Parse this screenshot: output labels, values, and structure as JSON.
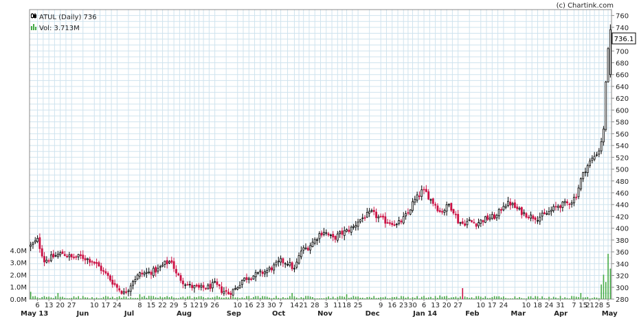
{
  "credit": "(c) Chartink.com",
  "legend": {
    "price_label": "ATUL (Daily) 736",
    "volume_label": "Vol: 3.713M"
  },
  "last_price_label": "736.1",
  "colors": {
    "up": "#000000",
    "down": "#cc1144",
    "volume": "#44aa44",
    "grid": "#cfe3ee",
    "plot_border": "#888888"
  },
  "chart_data": {
    "type": "candlestick",
    "price_axis": {
      "min": 280,
      "max": 770,
      "ticks": [
        280,
        300,
        320,
        340,
        360,
        380,
        400,
        420,
        440,
        460,
        480,
        500,
        520,
        540,
        560,
        580,
        600,
        620,
        640,
        660,
        680,
        700,
        720,
        740,
        760
      ]
    },
    "volume_axis": {
      "min": 0,
      "max": 4.5,
      "ticks": [
        0.0,
        1.0,
        2.0,
        3.0,
        4.0
      ],
      "tick_labels": [
        "0.0M",
        "1.0M",
        "2.0M",
        "3.0M",
        "4.0M"
      ]
    },
    "x_ticks": [
      {
        "i": 3,
        "label": "6"
      },
      {
        "i": 8,
        "label": "13"
      },
      {
        "i": 13,
        "label": "20"
      },
      {
        "i": 18,
        "label": "27"
      },
      {
        "i": 28,
        "label": "10"
      },
      {
        "i": 33,
        "label": "17"
      },
      {
        "i": 38,
        "label": "24"
      },
      {
        "i": 48,
        "label": "8"
      },
      {
        "i": 53,
        "label": "15"
      },
      {
        "i": 58,
        "label": "22"
      },
      {
        "i": 63,
        "label": "29"
      },
      {
        "i": 68,
        "label": "5"
      },
      {
        "i": 72,
        "label": "12"
      },
      {
        "i": 76,
        "label": "19"
      },
      {
        "i": 81,
        "label": "26"
      },
      {
        "i": 91,
        "label": "10"
      },
      {
        "i": 96,
        "label": "16"
      },
      {
        "i": 101,
        "label": "23"
      },
      {
        "i": 106,
        "label": "30"
      },
      {
        "i": 110,
        "label": "7"
      },
      {
        "i": 116,
        "label": "14"
      },
      {
        "i": 120,
        "label": "21"
      },
      {
        "i": 125,
        "label": "28"
      },
      {
        "i": 130,
        "label": "3"
      },
      {
        "i": 135,
        "label": "11"
      },
      {
        "i": 139,
        "label": "18"
      },
      {
        "i": 144,
        "label": "25"
      },
      {
        "i": 154,
        "label": "9"
      },
      {
        "i": 159,
        "label": "16"
      },
      {
        "i": 164,
        "label": "23"
      },
      {
        "i": 168,
        "label": "30"
      },
      {
        "i": 173,
        "label": "6"
      },
      {
        "i": 178,
        "label": "13"
      },
      {
        "i": 183,
        "label": "20"
      },
      {
        "i": 188,
        "label": "27"
      },
      {
        "i": 198,
        "label": "10"
      },
      {
        "i": 203,
        "label": "17"
      },
      {
        "i": 208,
        "label": "24"
      },
      {
        "i": 218,
        "label": "10"
      },
      {
        "i": 223,
        "label": "18"
      },
      {
        "i": 228,
        "label": "24"
      },
      {
        "i": 233,
        "label": "31"
      },
      {
        "i": 239,
        "label": "7"
      },
      {
        "i": 243,
        "label": "15"
      },
      {
        "i": 246,
        "label": "21"
      },
      {
        "i": 250,
        "label": "28"
      },
      {
        "i": 254,
        "label": "5"
      }
    ],
    "months": [
      {
        "i": 0,
        "label": "May 13"
      },
      {
        "i": 22,
        "label": "Jun"
      },
      {
        "i": 43,
        "label": "Jul"
      },
      {
        "i": 66,
        "label": "Aug"
      },
      {
        "i": 88,
        "label": "Sep"
      },
      {
        "i": 108,
        "label": "Oct"
      },
      {
        "i": 128,
        "label": "Nov"
      },
      {
        "i": 149,
        "label": "Dec"
      },
      {
        "i": 170,
        "label": "Jan 14"
      },
      {
        "i": 193,
        "label": "Feb"
      },
      {
        "i": 213,
        "label": "Mar"
      },
      {
        "i": 232,
        "label": "Apr"
      },
      {
        "i": 253,
        "label": "May"
      }
    ],
    "anchors": [
      [
        0,
        370
      ],
      [
        3,
        380
      ],
      [
        6,
        345
      ],
      [
        10,
        352
      ],
      [
        14,
        358
      ],
      [
        18,
        350
      ],
      [
        22,
        352
      ],
      [
        27,
        345
      ],
      [
        30,
        335
      ],
      [
        34,
        318
      ],
      [
        38,
        300
      ],
      [
        41,
        290
      ],
      [
        43,
        298
      ],
      [
        45,
        312
      ],
      [
        48,
        322
      ],
      [
        52,
        325
      ],
      [
        56,
        330
      ],
      [
        59,
        340
      ],
      [
        62,
        345
      ],
      [
        64,
        322
      ],
      [
        67,
        310
      ],
      [
        70,
        302
      ],
      [
        74,
        298
      ],
      [
        78,
        300
      ],
      [
        81,
        305
      ],
      [
        84,
        295
      ],
      [
        87,
        290
      ],
      [
        90,
        297
      ],
      [
        93,
        312
      ],
      [
        96,
        318
      ],
      [
        100,
        322
      ],
      [
        104,
        328
      ],
      [
        107,
        335
      ],
      [
        110,
        344
      ],
      [
        113,
        342
      ],
      [
        116,
        330
      ],
      [
        119,
        362
      ],
      [
        122,
        368
      ],
      [
        125,
        380
      ],
      [
        127,
        390
      ],
      [
        129,
        395
      ],
      [
        131,
        388
      ],
      [
        133,
        382
      ],
      [
        136,
        390
      ],
      [
        139,
        395
      ],
      [
        142,
        402
      ],
      [
        144,
        412
      ],
      [
        147,
        420
      ],
      [
        150,
        426
      ],
      [
        153,
        418
      ],
      [
        156,
        412
      ],
      [
        159,
        410
      ],
      [
        161,
        405
      ],
      [
        163,
        412
      ],
      [
        166,
        425
      ],
      [
        168,
        442
      ],
      [
        170,
        452
      ],
      [
        172,
        462
      ],
      [
        174,
        460
      ],
      [
        176,
        448
      ],
      [
        178,
        440
      ],
      [
        180,
        428
      ],
      [
        182,
        432
      ],
      [
        184,
        440
      ],
      [
        186,
        430
      ],
      [
        188,
        412
      ],
      [
        190,
        408
      ],
      [
        193,
        412
      ],
      [
        196,
        408
      ],
      [
        199,
        414
      ],
      [
        202,
        418
      ],
      [
        205,
        420
      ],
      [
        208,
        440
      ],
      [
        211,
        442
      ],
      [
        214,
        432
      ],
      [
        217,
        425
      ],
      [
        220,
        420
      ],
      [
        223,
        418
      ],
      [
        226,
        422
      ],
      [
        229,
        430
      ],
      [
        232,
        438
      ],
      [
        234,
        440
      ],
      [
        236,
        442
      ],
      [
        238,
        446
      ],
      [
        240,
        456
      ],
      [
        242,
        482
      ],
      [
        244,
        500
      ],
      [
        246,
        512
      ],
      [
        248,
        522
      ],
      [
        250,
        532
      ],
      [
        251,
        548
      ],
      [
        252,
        565
      ],
      [
        253,
        650
      ],
      [
        254,
        700
      ],
      [
        255,
        736
      ]
    ],
    "n_bars": 256,
    "last_close": 736.1,
    "last_volume_millions": 3.713
  }
}
